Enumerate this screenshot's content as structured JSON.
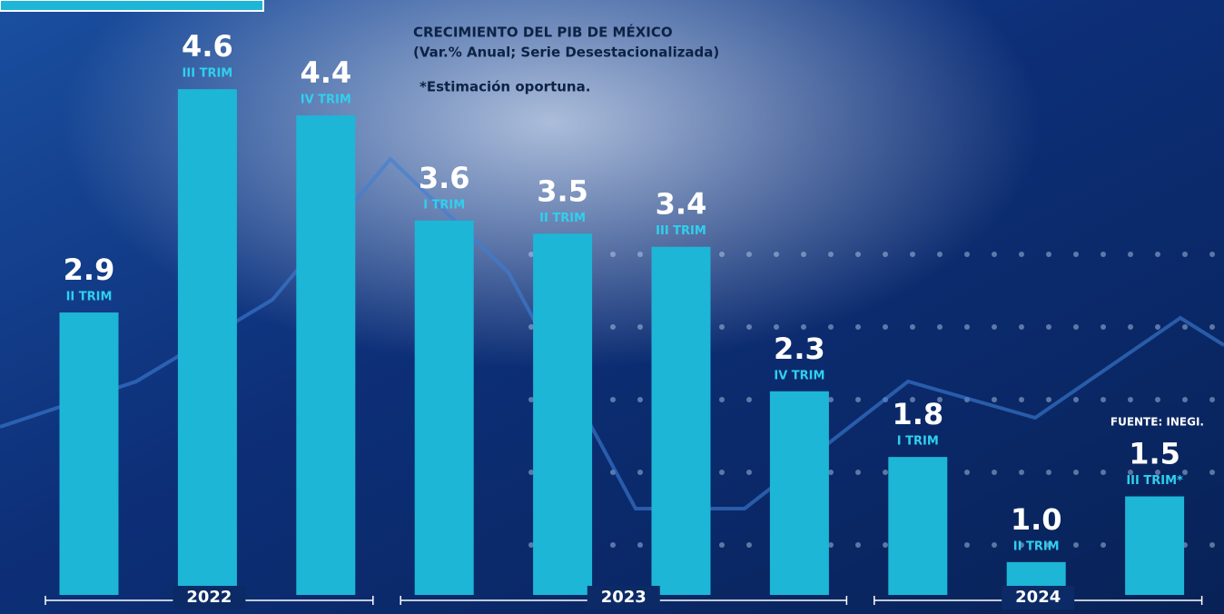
{
  "chart_data": {
    "type": "bar",
    "title": "CRECIMIENTO DEL PIB DE MÉXICO",
    "subtitle": "(Var.% Anual; Serie Desestacionalizada)",
    "note": "*Estimación oportuna.",
    "source": "FUENTE: INEGI.",
    "color": "#1db6d6",
    "ylim": [
      0.75,
      4.85
    ],
    "groups": [
      {
        "label": "2022",
        "categories": [
          "II TRIM",
          "III TRIM",
          "IV TRIM"
        ],
        "values": [
          2.9,
          4.6,
          4.4
        ],
        "value_labels": [
          "2.9",
          "4.6",
          "4.4"
        ]
      },
      {
        "label": "2023",
        "categories": [
          "I TRIM",
          "II TRIM",
          "III TRIM",
          "IV TRIM"
        ],
        "values": [
          3.6,
          3.5,
          3.4,
          2.3
        ],
        "value_labels": [
          "3.6",
          "3.5",
          "3.4",
          "2.3"
        ]
      },
      {
        "label": "2024",
        "categories": [
          "I TRIM",
          "II TRIM",
          "III TRIM*"
        ],
        "values": [
          1.8,
          1.0,
          1.5
        ],
        "value_labels": [
          "1.8",
          "1.0",
          "1.5"
        ]
      }
    ]
  }
}
